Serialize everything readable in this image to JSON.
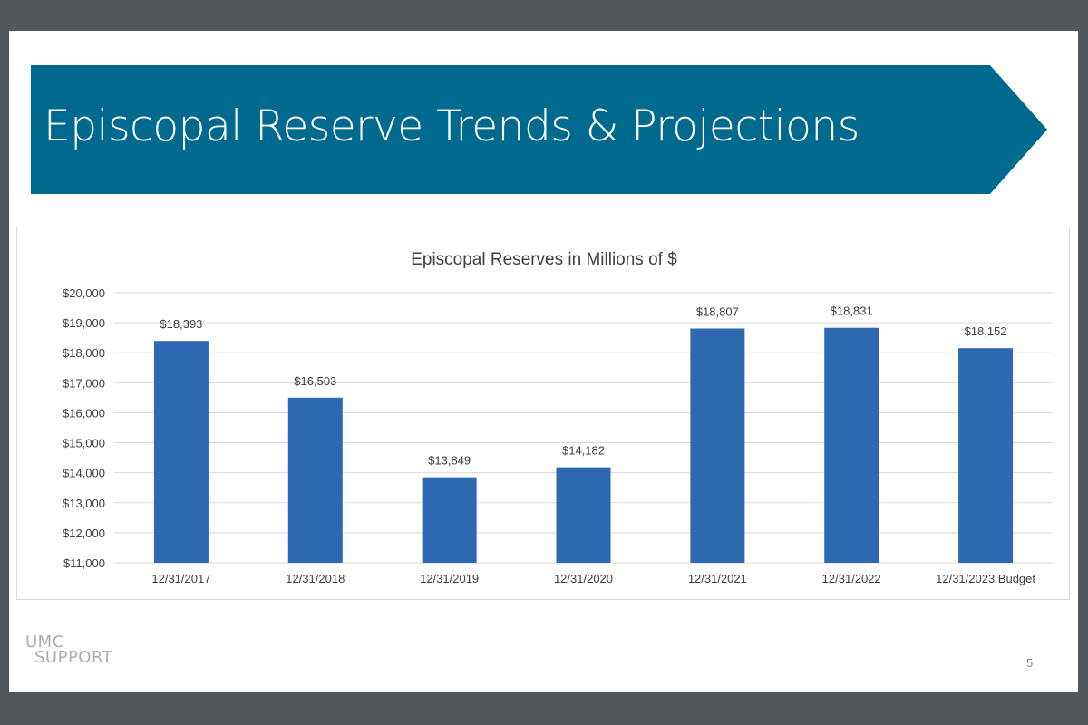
{
  "slide": {
    "title": "Episcopal Reserve Trends & Projections",
    "page_number": "5",
    "logo": {
      "line1": "UMC",
      "line2": "SUPPORT"
    },
    "colors": {
      "banner": "#006a8e",
      "bar": "#2e68b0",
      "background": "#53575a"
    }
  },
  "chart_data": {
    "type": "bar",
    "title": "Episcopal Reserves in Millions of $",
    "categories": [
      "12/31/2017",
      "12/31/2018",
      "12/31/2019",
      "12/31/2020",
      "12/31/2021",
      "12/31/2022",
      "12/31/2023 Budget"
    ],
    "values": [
      18393,
      16503,
      13849,
      14182,
      18807,
      18831,
      18152
    ],
    "data_labels": [
      "$18,393",
      "$16,503",
      "$13,849",
      "$14,182",
      "$18,807",
      "$18,831",
      "$18,152"
    ],
    "ylim": [
      11000,
      20000
    ],
    "yticks": [
      11000,
      12000,
      13000,
      14000,
      15000,
      16000,
      17000,
      18000,
      19000,
      20000
    ],
    "ytick_labels": [
      "$11,000",
      "$12,000",
      "$13,000",
      "$14,000",
      "$15,000",
      "$16,000",
      "$17,000",
      "$18,000",
      "$19,000",
      "$20,000"
    ],
    "xlabel": "",
    "ylabel": "",
    "grid": true,
    "legend": "none"
  }
}
